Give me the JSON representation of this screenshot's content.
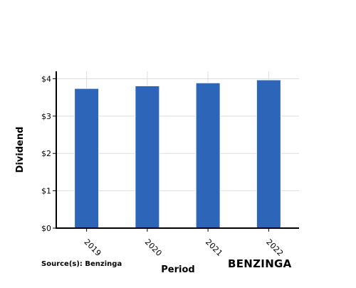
{
  "chart_data": {
    "type": "bar",
    "categories": [
      "2019",
      "2020",
      "2021",
      "2022"
    ],
    "values": [
      3.74,
      3.81,
      3.89,
      3.97
    ],
    "xlabel": "Period",
    "ylabel": "Dividend",
    "ylim": [
      0,
      4.2
    ],
    "yticks": [
      {
        "value": 0,
        "label": "$0"
      },
      {
        "value": 1,
        "label": "$1"
      },
      {
        "value": 2,
        "label": "$2"
      },
      {
        "value": 3,
        "label": "$3"
      },
      {
        "value": 4,
        "label": "$4"
      }
    ],
    "bar_color": "#2d66b8",
    "grid": true
  },
  "source_text": "Source(s): Benzinga",
  "brand": {
    "text": "BENZINGA",
    "color": "#1a3d6e"
  }
}
